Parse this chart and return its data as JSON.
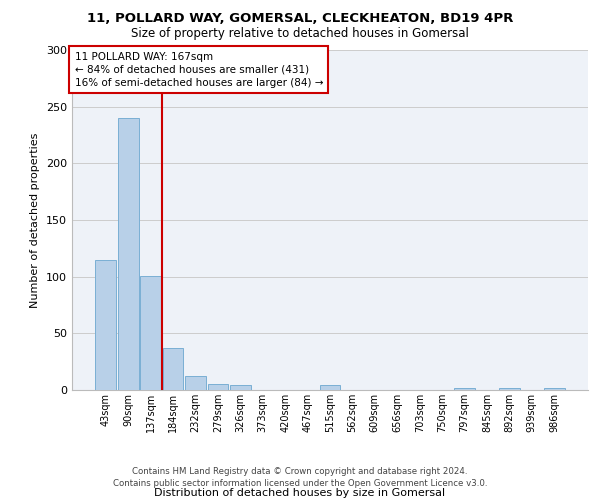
{
  "title1": "11, POLLARD WAY, GOMERSAL, CLECKHEATON, BD19 4PR",
  "title2": "Size of property relative to detached houses in Gomersal",
  "xlabel": "Distribution of detached houses by size in Gomersal",
  "ylabel": "Number of detached properties",
  "categories": [
    "43sqm",
    "90sqm",
    "137sqm",
    "184sqm",
    "232sqm",
    "279sqm",
    "326sqm",
    "373sqm",
    "420sqm",
    "467sqm",
    "515sqm",
    "562sqm",
    "609sqm",
    "656sqm",
    "703sqm",
    "750sqm",
    "797sqm",
    "845sqm",
    "892sqm",
    "939sqm",
    "986sqm"
  ],
  "values": [
    115,
    240,
    101,
    37,
    12,
    5,
    4,
    0,
    0,
    0,
    4,
    0,
    0,
    0,
    0,
    0,
    2,
    0,
    2,
    0,
    2
  ],
  "bar_color": "#b8d0e8",
  "bar_edge_color": "#7aafd4",
  "vline_x": 2.5,
  "annotation_line1": "11 POLLARD WAY: 167sqm",
  "annotation_line2": "← 84% of detached houses are smaller (431)",
  "annotation_line3": "16% of semi-detached houses are larger (84) →",
  "annotation_box_color": "#ffffff",
  "annotation_box_edge_color": "#cc0000",
  "vline_color": "#cc0000",
  "ylim": [
    0,
    300
  ],
  "yticks": [
    0,
    50,
    100,
    150,
    200,
    250,
    300
  ],
  "grid_color": "#cccccc",
  "background_color": "#eef2f8",
  "footer1": "Contains HM Land Registry data © Crown copyright and database right 2024.",
  "footer2": "Contains public sector information licensed under the Open Government Licence v3.0."
}
